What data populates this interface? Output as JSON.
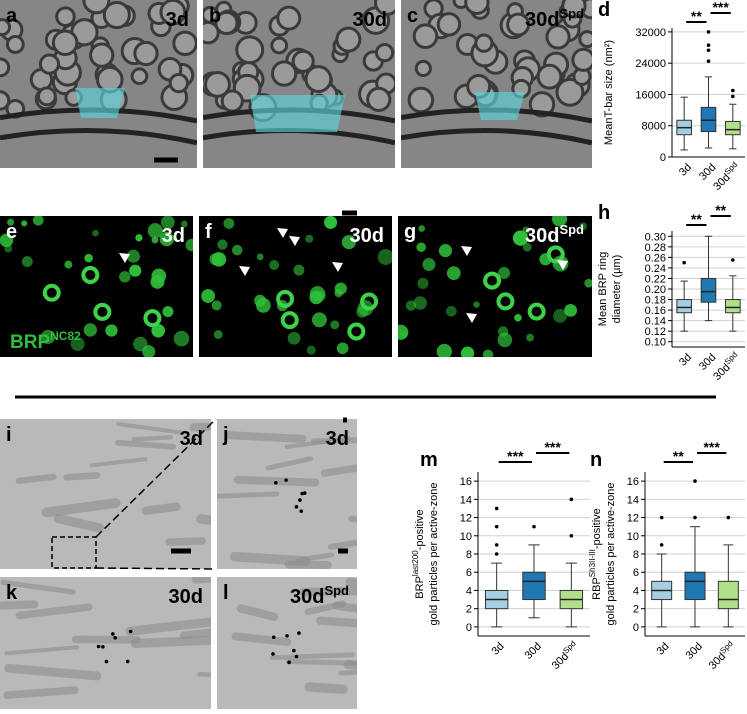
{
  "panels": [
    {
      "letter": "a",
      "label": "3d"
    },
    {
      "letter": "b",
      "label": "30d"
    },
    {
      "letter": "c",
      "label": "30d",
      "label_sup": "Spd"
    },
    {
      "letter": "e",
      "label": "3d"
    },
    {
      "letter": "f",
      "label": "30d"
    },
    {
      "letter": "g",
      "label": "30d",
      "label_sup": "Spd"
    },
    {
      "letter": "i",
      "label": "3d"
    },
    {
      "letter": "j",
      "label": "3d"
    },
    {
      "letter": "k",
      "label": "30d"
    },
    {
      "letter": "l",
      "label": "30d",
      "label_sup": "Spd"
    }
  ],
  "stain_label": {
    "text": "BRP",
    "sup": "NC82"
  },
  "chart_data": [
    {
      "type": "box",
      "letter": "d",
      "ylabel_lines": [
        "MeanT-bar size (nm²)"
      ],
      "categories": [
        "3d",
        "30d",
        "30d"
      ],
      "category_superscripts": [
        null,
        null,
        "Spd"
      ],
      "colors": [
        "#a6cee3",
        "#1f78b4",
        "#b2df8a"
      ],
      "boxes": [
        {
          "low": 1800,
          "q1": 5700,
          "median": 7500,
          "q3": 9400,
          "high": 15300,
          "outliers": []
        },
        {
          "low": 2300,
          "q1": 6500,
          "median": 9400,
          "q3": 12700,
          "high": 20500,
          "outliers": [
            24500,
            27300,
            28600,
            32000
          ]
        },
        {
          "low": 2100,
          "q1": 5700,
          "median": 7000,
          "q3": 9100,
          "high": 13500,
          "outliers": [
            15500,
            17000
          ]
        }
      ],
      "ylim": [
        0,
        33000
      ],
      "yticks": [
        0,
        8000,
        16000,
        24000,
        32000
      ],
      "grid": true,
      "significance": [
        "**",
        "***"
      ]
    },
    {
      "type": "box",
      "letter": "h",
      "ylabel_lines": [
        "Mean BRP ring",
        "diameter (µm)"
      ],
      "categories": [
        "3d",
        "30d",
        "30d"
      ],
      "category_superscripts": [
        null,
        null,
        "Spd"
      ],
      "colors": [
        "#a6cee3",
        "#1f78b4",
        "#b2df8a"
      ],
      "boxes": [
        {
          "low": 0.12,
          "q1": 0.155,
          "median": 0.165,
          "q3": 0.18,
          "high": 0.215,
          "outliers": [
            0.25
          ]
        },
        {
          "low": 0.14,
          "q1": 0.175,
          "median": 0.195,
          "q3": 0.22,
          "high": 0.3,
          "outliers": []
        },
        {
          "low": 0.12,
          "q1": 0.155,
          "median": 0.165,
          "q3": 0.18,
          "high": 0.225,
          "outliers": [
            0.255
          ]
        }
      ],
      "ylim": [
        0.09,
        0.31
      ],
      "yticks": [
        {
          "value": 0.1,
          "label": "0.10"
        },
        0.12,
        0.14,
        0.16,
        0.18,
        {
          "value": 0.2,
          "label": "0.20"
        },
        0.22,
        0.24,
        0.26,
        0.28,
        {
          "value": 0.3,
          "label": "0.30"
        }
      ],
      "grid": true,
      "significance": [
        "**",
        "**"
      ]
    },
    {
      "type": "box",
      "letter": "m",
      "ylabel_top": {
        "pre": "BRP",
        "sup": "last200",
        "post": "-positive"
      },
      "ylabel_lines": [
        "gold particles per active-zone"
      ],
      "categories": [
        "3d",
        "30d",
        "30d"
      ],
      "category_superscripts": [
        null,
        null,
        "Spd"
      ],
      "colors": [
        "#a6cee3",
        "#1f78b4",
        "#b2df8a"
      ],
      "boxes": [
        {
          "low": 0,
          "q1": 2,
          "median": 3,
          "q3": 4,
          "high": 7,
          "outliers": [
            8,
            9,
            11,
            13
          ]
        },
        {
          "low": 1,
          "q1": 3,
          "median": 5,
          "q3": 6,
          "high": 9,
          "outliers": [
            11
          ]
        },
        {
          "low": 0,
          "q1": 2,
          "median": 3,
          "q3": 4,
          "high": 7,
          "outliers": [
            10,
            14
          ]
        }
      ],
      "ylim": [
        -1,
        17
      ],
      "yticks": [
        0,
        2,
        4,
        6,
        8,
        10,
        12,
        14,
        16
      ],
      "grid": true,
      "significance": [
        "***",
        "***"
      ]
    },
    {
      "type": "box",
      "letter": "n",
      "ylabel_top": {
        "pre": "RBP",
        "sup": "Sh3II-III",
        "post": "-positive"
      },
      "ylabel_lines": [
        "gold particles per active-zone"
      ],
      "categories": [
        "3d",
        "30d",
        "30d"
      ],
      "category_superscripts": [
        null,
        null,
        "Spd"
      ],
      "colors": [
        "#a6cee3",
        "#1f78b4",
        "#b2df8a"
      ],
      "boxes": [
        {
          "low": 0,
          "q1": 3,
          "median": 4,
          "q3": 5,
          "high": 8,
          "outliers": [
            9,
            12
          ]
        },
        {
          "low": 0,
          "q1": 3,
          "median": 5,
          "q3": 6,
          "high": 11,
          "outliers": [
            12,
            16
          ]
        },
        {
          "low": 0,
          "q1": 2,
          "median": 3,
          "q3": 5,
          "high": 9,
          "outliers": [
            12
          ]
        }
      ],
      "ylim": [
        -1,
        17
      ],
      "yticks": [
        0,
        2,
        4,
        6,
        8,
        10,
        12,
        14,
        16
      ],
      "grid": true,
      "significance": [
        "**",
        "***"
      ]
    }
  ]
}
